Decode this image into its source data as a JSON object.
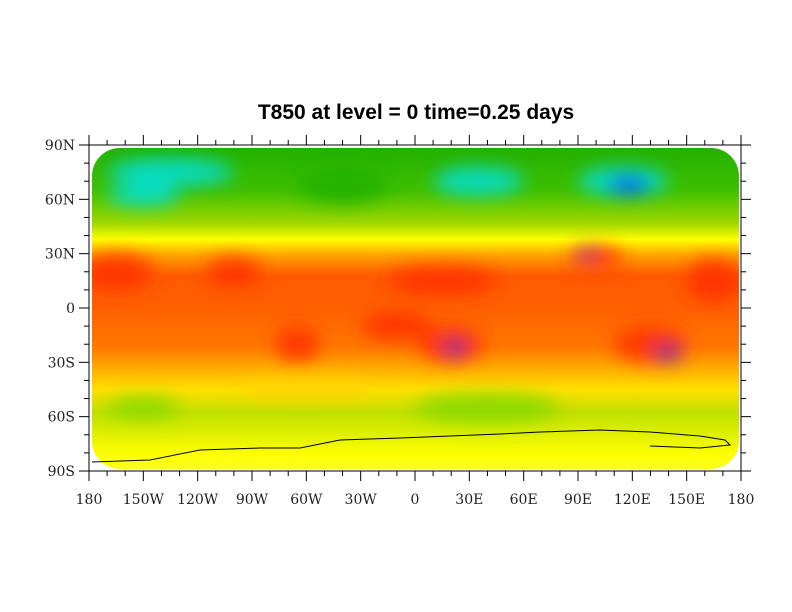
{
  "title": "T850 at level = 0 time=0.25 days",
  "colors": {
    "cold": "#0050ff",
    "cool": "#00e0e0",
    "mild": "#20b000",
    "warm": "#ffff00",
    "hot": "#ff3000",
    "hottest": "#8030a0"
  },
  "map": {
    "projection": "cylindrical equidistant",
    "lon_range": [
      -180,
      180
    ],
    "lat_range": [
      -90,
      90
    ],
    "lat_ticks": [
      {
        "value": 90,
        "label": "90N"
      },
      {
        "value": 60,
        "label": "60N"
      },
      {
        "value": 30,
        "label": "30N"
      },
      {
        "value": 0,
        "label": "0"
      },
      {
        "value": -30,
        "label": "30S"
      },
      {
        "value": -60,
        "label": "60S"
      },
      {
        "value": -90,
        "label": "90S"
      }
    ],
    "lon_ticks": [
      {
        "value": -180,
        "label": "180"
      },
      {
        "value": -150,
        "label": "150W"
      },
      {
        "value": -120,
        "label": "120W"
      },
      {
        "value": -90,
        "label": "90W"
      },
      {
        "value": -60,
        "label": "60W"
      },
      {
        "value": -30,
        "label": "30W"
      },
      {
        "value": 0,
        "label": "0"
      },
      {
        "value": 30,
        "label": "30E"
      },
      {
        "value": 60,
        "label": "60E"
      },
      {
        "value": 90,
        "label": "90E"
      },
      {
        "value": 120,
        "label": "120E"
      },
      {
        "value": 150,
        "label": "150E"
      },
      {
        "value": 180,
        "label": "180"
      }
    ]
  }
}
